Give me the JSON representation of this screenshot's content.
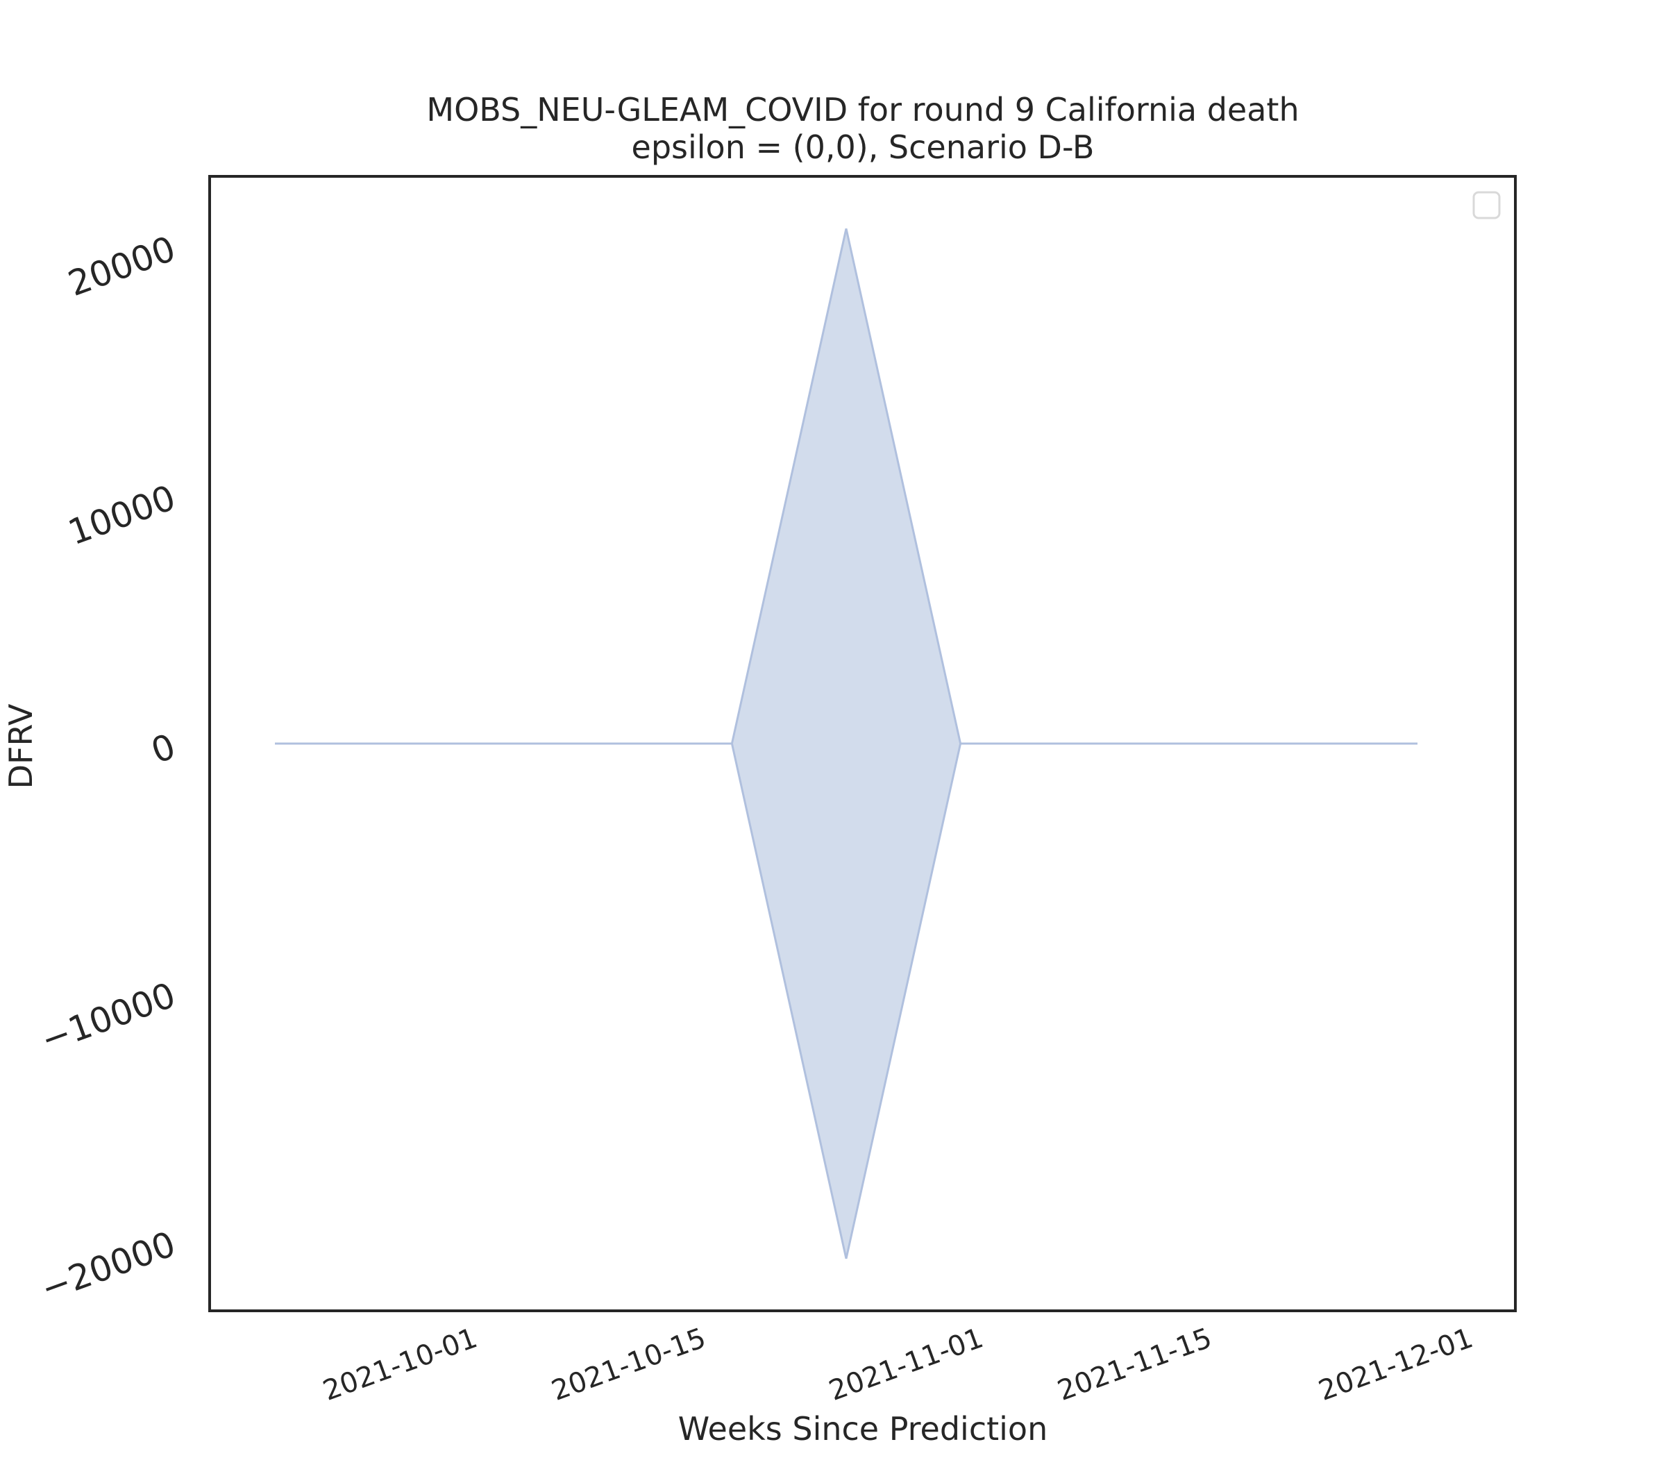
{
  "chart_data": {
    "type": "area",
    "title": "MOBS_NEU-GLEAM_COVID for round 9 California death",
    "subtitle": "epsilon = (0,0), Scenario D-B",
    "xlabel": "Weeks Since Prediction",
    "ylabel": "DFRV",
    "x_tick_labels": [
      "2021-10-01",
      "2021-10-15",
      "2021-11-01",
      "2021-11-15",
      "2021-12-01"
    ],
    "y_tick_labels": [
      "−20000",
      "−10000",
      "0",
      "10000",
      "20000"
    ],
    "y_tick_values": [
      -20000,
      -10000,
      0,
      10000,
      20000
    ],
    "xlim": [
      "2021-09-15",
      "2021-12-04"
    ],
    "ylim": [
      -22800,
      22800
    ],
    "legend": {
      "placement": "top-right",
      "entries": []
    },
    "grid": false,
    "series": [
      {
        "color": "#b0c0de",
        "fill_color": "#d2dcec",
        "x": [
          "2021-09-19",
          "2021-10-17",
          "2021-10-24",
          "2021-10-31",
          "2021-11-28"
        ],
        "upper": [
          0,
          0,
          20700,
          0,
          0
        ],
        "lower": [
          0,
          0,
          -20700,
          0,
          0
        ]
      }
    ]
  }
}
